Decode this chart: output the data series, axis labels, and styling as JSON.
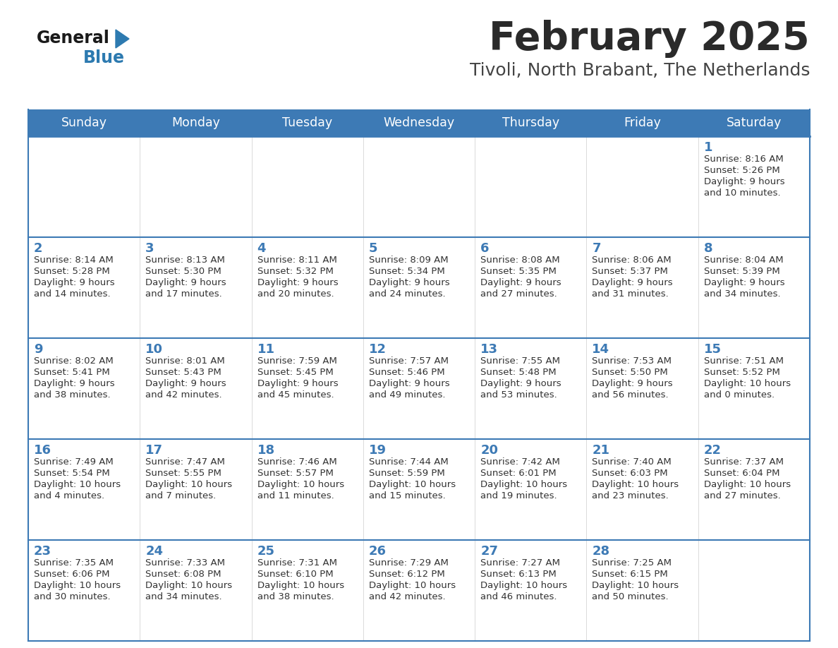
{
  "title": "February 2025",
  "subtitle": "Tivoli, North Brabant, The Netherlands",
  "days_of_week": [
    "Sunday",
    "Monday",
    "Tuesday",
    "Wednesday",
    "Thursday",
    "Friday",
    "Saturday"
  ],
  "header_bg": "#3d7ab5",
  "header_text": "#ffffff",
  "row_bg_odd": "#f0f0f0",
  "row_bg_even": "#ffffff",
  "separator_color": "#3d7ab5",
  "day_number_color": "#3d7ab5",
  "cell_text_color": "#333333",
  "title_color": "#2a2a2a",
  "subtitle_color": "#444444",
  "logo_general_color": "#1a1a1a",
  "logo_blue_color": "#2d7ab0",
  "logo_triangle_color": "#2d7ab0",
  "weeks": [
    [
      {
        "day": null,
        "sunrise": null,
        "sunset": null,
        "daylight": null
      },
      {
        "day": null,
        "sunrise": null,
        "sunset": null,
        "daylight": null
      },
      {
        "day": null,
        "sunrise": null,
        "sunset": null,
        "daylight": null
      },
      {
        "day": null,
        "sunrise": null,
        "sunset": null,
        "daylight": null
      },
      {
        "day": null,
        "sunrise": null,
        "sunset": null,
        "daylight": null
      },
      {
        "day": null,
        "sunrise": null,
        "sunset": null,
        "daylight": null
      },
      {
        "day": 1,
        "sunrise": "8:16 AM",
        "sunset": "5:26 PM",
        "daylight": "9 hours\nand 10 minutes."
      }
    ],
    [
      {
        "day": 2,
        "sunrise": "8:14 AM",
        "sunset": "5:28 PM",
        "daylight": "9 hours\nand 14 minutes."
      },
      {
        "day": 3,
        "sunrise": "8:13 AM",
        "sunset": "5:30 PM",
        "daylight": "9 hours\nand 17 minutes."
      },
      {
        "day": 4,
        "sunrise": "8:11 AM",
        "sunset": "5:32 PM",
        "daylight": "9 hours\nand 20 minutes."
      },
      {
        "day": 5,
        "sunrise": "8:09 AM",
        "sunset": "5:34 PM",
        "daylight": "9 hours\nand 24 minutes."
      },
      {
        "day": 6,
        "sunrise": "8:08 AM",
        "sunset": "5:35 PM",
        "daylight": "9 hours\nand 27 minutes."
      },
      {
        "day": 7,
        "sunrise": "8:06 AM",
        "sunset": "5:37 PM",
        "daylight": "9 hours\nand 31 minutes."
      },
      {
        "day": 8,
        "sunrise": "8:04 AM",
        "sunset": "5:39 PM",
        "daylight": "9 hours\nand 34 minutes."
      }
    ],
    [
      {
        "day": 9,
        "sunrise": "8:02 AM",
        "sunset": "5:41 PM",
        "daylight": "9 hours\nand 38 minutes."
      },
      {
        "day": 10,
        "sunrise": "8:01 AM",
        "sunset": "5:43 PM",
        "daylight": "9 hours\nand 42 minutes."
      },
      {
        "day": 11,
        "sunrise": "7:59 AM",
        "sunset": "5:45 PM",
        "daylight": "9 hours\nand 45 minutes."
      },
      {
        "day": 12,
        "sunrise": "7:57 AM",
        "sunset": "5:46 PM",
        "daylight": "9 hours\nand 49 minutes."
      },
      {
        "day": 13,
        "sunrise": "7:55 AM",
        "sunset": "5:48 PM",
        "daylight": "9 hours\nand 53 minutes."
      },
      {
        "day": 14,
        "sunrise": "7:53 AM",
        "sunset": "5:50 PM",
        "daylight": "9 hours\nand 56 minutes."
      },
      {
        "day": 15,
        "sunrise": "7:51 AM",
        "sunset": "5:52 PM",
        "daylight": "10 hours\nand 0 minutes."
      }
    ],
    [
      {
        "day": 16,
        "sunrise": "7:49 AM",
        "sunset": "5:54 PM",
        "daylight": "10 hours\nand 4 minutes."
      },
      {
        "day": 17,
        "sunrise": "7:47 AM",
        "sunset": "5:55 PM",
        "daylight": "10 hours\nand 7 minutes."
      },
      {
        "day": 18,
        "sunrise": "7:46 AM",
        "sunset": "5:57 PM",
        "daylight": "10 hours\nand 11 minutes."
      },
      {
        "day": 19,
        "sunrise": "7:44 AM",
        "sunset": "5:59 PM",
        "daylight": "10 hours\nand 15 minutes."
      },
      {
        "day": 20,
        "sunrise": "7:42 AM",
        "sunset": "6:01 PM",
        "daylight": "10 hours\nand 19 minutes."
      },
      {
        "day": 21,
        "sunrise": "7:40 AM",
        "sunset": "6:03 PM",
        "daylight": "10 hours\nand 23 minutes."
      },
      {
        "day": 22,
        "sunrise": "7:37 AM",
        "sunset": "6:04 PM",
        "daylight": "10 hours\nand 27 minutes."
      }
    ],
    [
      {
        "day": 23,
        "sunrise": "7:35 AM",
        "sunset": "6:06 PM",
        "daylight": "10 hours\nand 30 minutes."
      },
      {
        "day": 24,
        "sunrise": "7:33 AM",
        "sunset": "6:08 PM",
        "daylight": "10 hours\nand 34 minutes."
      },
      {
        "day": 25,
        "sunrise": "7:31 AM",
        "sunset": "6:10 PM",
        "daylight": "10 hours\nand 38 minutes."
      },
      {
        "day": 26,
        "sunrise": "7:29 AM",
        "sunset": "6:12 PM",
        "daylight": "10 hours\nand 42 minutes."
      },
      {
        "day": 27,
        "sunrise": "7:27 AM",
        "sunset": "6:13 PM",
        "daylight": "10 hours\nand 46 minutes."
      },
      {
        "day": 28,
        "sunrise": "7:25 AM",
        "sunset": "6:15 PM",
        "daylight": "10 hours\nand 50 minutes."
      },
      {
        "day": null,
        "sunrise": null,
        "sunset": null,
        "daylight": null
      }
    ]
  ],
  "figsize": [
    11.88,
    9.18
  ],
  "dpi": 100
}
